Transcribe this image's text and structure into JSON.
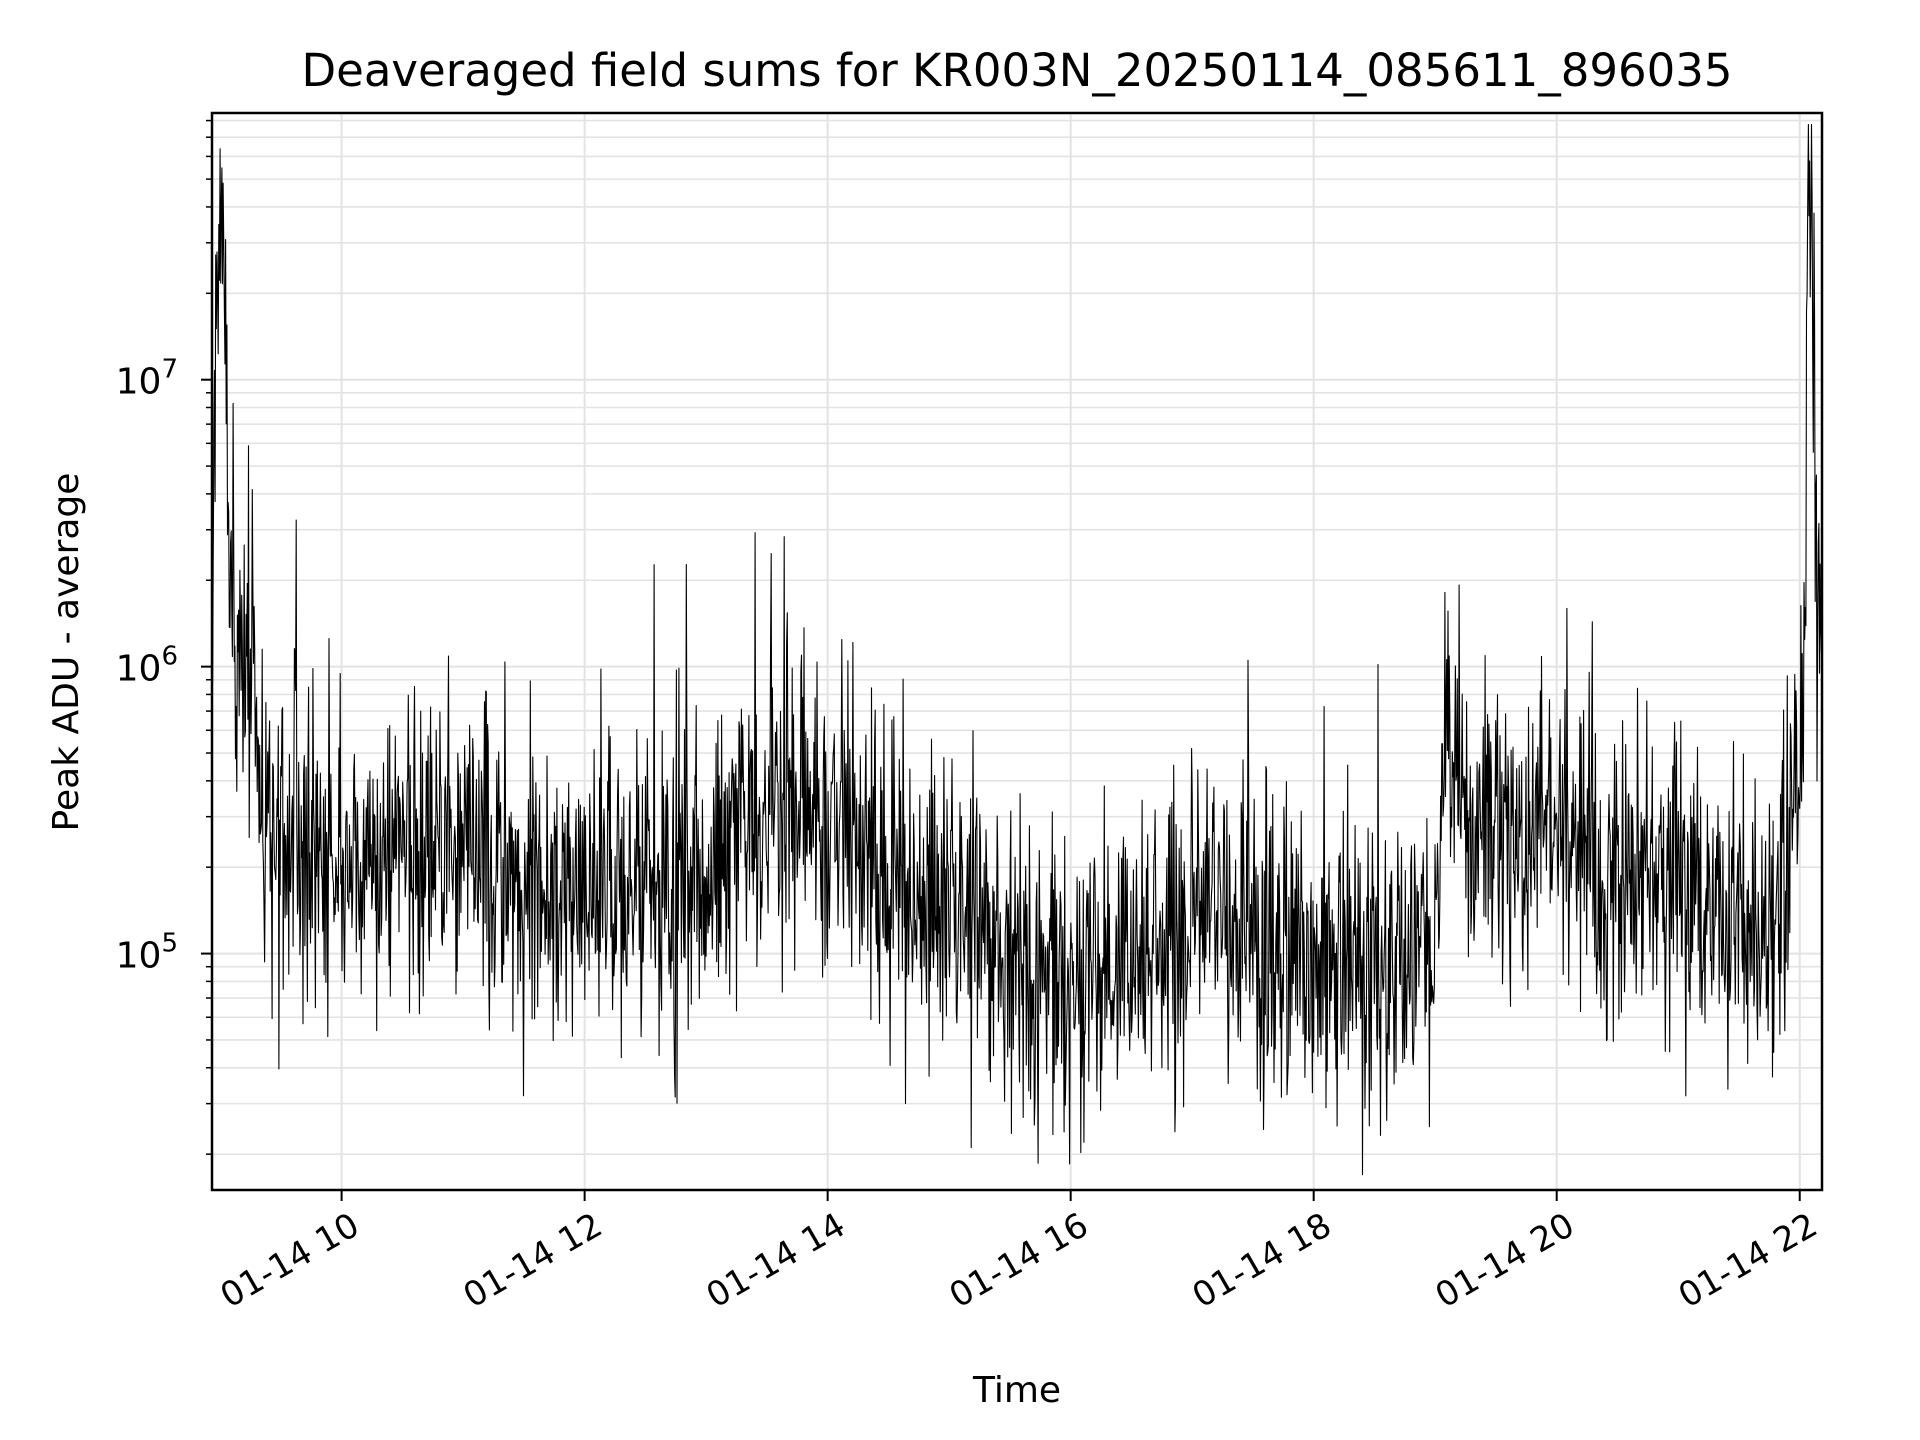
{
  "chart_data": {
    "type": "line",
    "title": "Deaveraged field sums for KR003N_20250114_085611_896035",
    "xlabel": "Time",
    "ylabel": "Peak ADU - average",
    "x_scale": "time",
    "y_scale": "log",
    "xlim": [
      "2025-01-14 08:56",
      "2025-01-14 22:11"
    ],
    "ylim": [
      15000,
      85000000
    ],
    "grid": true,
    "x_tick_labels": [
      "01-14 10",
      "01-14 12",
      "01-14 14",
      "01-14 16",
      "01-14 18",
      "01-14 20",
      "01-14 22"
    ],
    "y_tick_labels": [
      {
        "base": "10",
        "exp": "5"
      },
      {
        "base": "10",
        "exp": "6"
      },
      {
        "base": "10",
        "exp": "7"
      }
    ],
    "line_color": "#000000",
    "series": [
      {
        "x": [
          "2025-01-14 08:56",
          "2025-01-14 09:00",
          "2025-01-14 09:02",
          "2025-01-14 09:04",
          "2025-01-14 09:06",
          "2025-01-14 09:10",
          "2025-01-14 09:15",
          "2025-01-14 09:20",
          "2025-01-14 09:30",
          "2025-01-14 09:45",
          "2025-01-14 10:00",
          "2025-01-14 10:20",
          "2025-01-14 10:40",
          "2025-01-14 11:00",
          "2025-01-14 11:20",
          "2025-01-14 11:40",
          "2025-01-14 12:00",
          "2025-01-14 12:20",
          "2025-01-14 12:40",
          "2025-01-14 13:00",
          "2025-01-14 13:20",
          "2025-01-14 13:40",
          "2025-01-14 14:00",
          "2025-01-14 14:20",
          "2025-01-14 14:40",
          "2025-01-14 15:00",
          "2025-01-14 15:20",
          "2025-01-14 15:40",
          "2025-01-14 16:00",
          "2025-01-14 16:20",
          "2025-01-14 16:40",
          "2025-01-14 17:00",
          "2025-01-14 17:20",
          "2025-01-14 17:40",
          "2025-01-14 18:00",
          "2025-01-14 18:20",
          "2025-01-14 18:40",
          "2025-01-14 18:58",
          "2025-01-14 19:05",
          "2025-01-14 19:20",
          "2025-01-14 19:40",
          "2025-01-14 20:00",
          "2025-01-14 20:20",
          "2025-01-14 20:40",
          "2025-01-14 21:00",
          "2025-01-14 21:20",
          "2025-01-14 21:35",
          "2025-01-14 21:45",
          "2025-01-14 21:55",
          "2025-01-14 22:00",
          "2025-01-14 22:02",
          "2025-01-14 22:04",
          "2025-01-14 22:06",
          "2025-01-14 22:08",
          "2025-01-14 22:11"
        ],
        "y": [
          1500000,
          50000000,
          50000000,
          2500000,
          1400000,
          1200000,
          700000,
          300000,
          250000,
          220000,
          200000,
          230000,
          210000,
          240000,
          200000,
          180000,
          200000,
          170000,
          150000,
          170000,
          250000,
          300000,
          280000,
          230000,
          170000,
          140000,
          120000,
          85000,
          80000,
          90000,
          100000,
          120000,
          140000,
          100000,
          90000,
          80000,
          85000,
          90000,
          650000,
          300000,
          250000,
          260000,
          230000,
          180000,
          160000,
          140000,
          120000,
          110000,
          250000,
          500000,
          700000,
          55000000,
          50000000,
          2200000,
          1200000
        ]
      }
    ]
  }
}
